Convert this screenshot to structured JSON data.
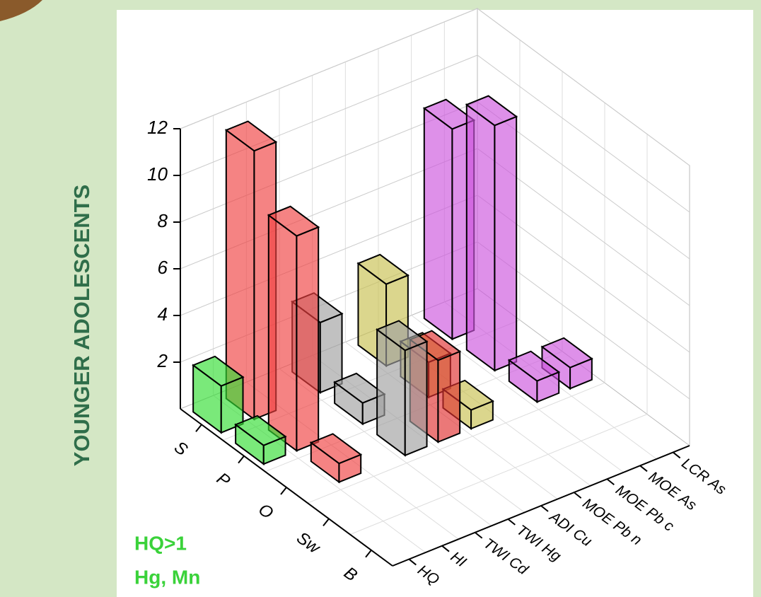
{
  "side_title": "YOUNGER ADOLESCENTS",
  "notes": [
    "HQ>1",
    "Hg, Mn"
  ],
  "chart_data": {
    "type": "bar3d",
    "categories": [
      "S",
      "P",
      "O",
      "Sw",
      "B"
    ],
    "series": [
      {
        "name": "HQ",
        "color": "#33dd33",
        "values": [
          2,
          0.8,
          null,
          null,
          null
        ]
      },
      {
        "name": "HI",
        "color": "#f04040",
        "values": [
          11.5,
          9.2,
          0.8,
          null,
          null
        ]
      },
      {
        "name": "TWI Cd",
        "color": "#999999",
        "values": [
          null,
          null,
          null,
          null,
          null
        ]
      },
      {
        "name": "TWI Hg",
        "color": "#a0a0a0",
        "values": [
          3,
          0.9,
          4.5,
          null,
          null
        ]
      },
      {
        "name": "ADI Cu",
        "color": "#e03030",
        "values": [
          null,
          null,
          3.5,
          null,
          null
        ]
      },
      {
        "name": "MOE Pb n",
        "color": "#c8c050",
        "values": [
          3.5,
          1.5,
          0.8,
          null,
          null
        ]
      },
      {
        "name": "MOE Pb c",
        "color": "#c8c050",
        "values": [
          null,
          null,
          null,
          null,
          null
        ]
      },
      {
        "name": "MOE As",
        "color": "#cc55dd",
        "values": [
          9,
          10.5,
          0.9,
          null,
          null
        ]
      },
      {
        "name": "LCR As",
        "color": "#cc55dd",
        "values": [
          null,
          null,
          0.9,
          null,
          null
        ]
      }
    ],
    "ylim": [
      0,
      12
    ],
    "yticks": [
      2,
      4,
      6,
      8,
      10,
      12
    ],
    "grid": true
  }
}
